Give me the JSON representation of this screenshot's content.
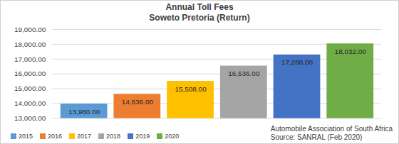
{
  "chart_data": {
    "type": "bar",
    "title": "Annual Toll Fees",
    "subtitle": "Soweto Pretoria (Return)",
    "caption": [
      "Automobile Association of South Africa",
      "Source: SANRAL (Feb 2020)"
    ],
    "categories": [
      "2015",
      "2016",
      "2017",
      "2018",
      "2019",
      "2020"
    ],
    "values": [
      13980,
      14636,
      15508,
      16536,
      17288,
      18032
    ],
    "value_labels": [
      "13,980.00",
      "14,636.00",
      "15,508.00",
      "16,536.00",
      "17,288.00",
      "18,032.00"
    ],
    "colors": [
      "#5b9bd5",
      "#ed7d31",
      "#ffc000",
      "#a5a5a5",
      "#4472c4",
      "#70ad47"
    ],
    "ylim": [
      13000,
      19000
    ],
    "yticks": [
      {
        "value": 13000,
        "label": "13,000.00"
      },
      {
        "value": 14000,
        "label": "14,000.00"
      },
      {
        "value": 15000,
        "label": "15,000.00"
      },
      {
        "value": 16000,
        "label": "16,000.00"
      },
      {
        "value": 17000,
        "label": "17,000.00"
      },
      {
        "value": 18000,
        "label": "18,000.00"
      },
      {
        "value": 19000,
        "label": "19,000.00"
      }
    ],
    "grid": true,
    "data_labels": true,
    "tick_labels": "y",
    "legend": "bottom"
  }
}
